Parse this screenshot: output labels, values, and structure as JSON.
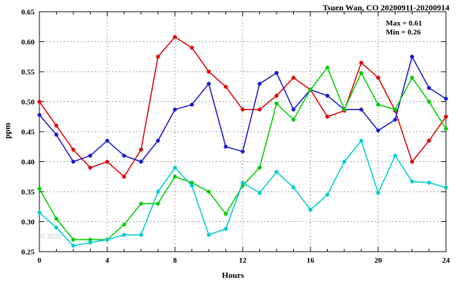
{
  "chart_data": {
    "type": "line",
    "title": "Tsuen Wan, CO 20200911-20200914",
    "xlabel": "Hours",
    "ylabel": "ppm",
    "xlim": [
      0,
      24
    ],
    "ylim": [
      0.25,
      0.65
    ],
    "xticks": [
      0,
      4,
      8,
      12,
      16,
      20,
      24
    ],
    "yticks": [
      0.25,
      0.3,
      0.35,
      0.4,
      0.45,
      0.5,
      0.55,
      0.6,
      0.65
    ],
    "grid": true,
    "legend": "none",
    "annotations": [
      "Max = 0.61",
      "Min = 0.26"
    ],
    "watermark": "© 2020",
    "x": [
      0,
      1,
      2,
      3,
      4,
      5,
      6,
      7,
      8,
      9,
      10,
      11,
      12,
      13,
      14,
      15,
      16,
      17,
      18,
      19,
      20,
      21,
      22,
      23,
      24
    ],
    "series": [
      {
        "name": "red",
        "color": "#dd0000",
        "values": [
          0.5,
          0.46,
          0.42,
          0.39,
          0.4,
          0.375,
          0.42,
          0.575,
          0.608,
          0.59,
          0.55,
          0.525,
          0.487,
          0.487,
          0.51,
          0.54,
          0.52,
          0.475,
          0.485,
          0.565,
          0.54,
          0.485,
          0.4,
          0.435,
          0.475
        ]
      },
      {
        "name": "blue",
        "color": "#1818cc",
        "values": [
          0.478,
          0.445,
          0.4,
          0.41,
          0.435,
          0.41,
          0.4,
          0.435,
          0.487,
          0.495,
          0.53,
          0.425,
          0.417,
          0.53,
          0.548,
          0.487,
          0.52,
          0.51,
          0.487,
          0.487,
          0.452,
          0.47,
          0.575,
          0.523,
          0.505
        ]
      },
      {
        "name": "green",
        "color": "#00cc00",
        "values": [
          0.355,
          0.305,
          0.27,
          0.27,
          0.27,
          0.295,
          0.33,
          0.33,
          0.375,
          0.365,
          0.35,
          0.313,
          0.36,
          0.39,
          0.497,
          0.47,
          0.52,
          0.557,
          0.487,
          0.548,
          0.495,
          0.487,
          0.54,
          0.5,
          0.455
        ]
      },
      {
        "name": "cyan",
        "color": "#00cccc",
        "values": [
          0.315,
          0.29,
          0.26,
          0.265,
          0.27,
          0.278,
          0.278,
          0.35,
          0.39,
          0.36,
          0.278,
          0.288,
          0.365,
          0.348,
          0.383,
          0.357,
          0.32,
          0.345,
          0.4,
          0.435,
          0.348,
          0.41,
          0.367,
          0.365,
          0.357
        ]
      }
    ]
  }
}
